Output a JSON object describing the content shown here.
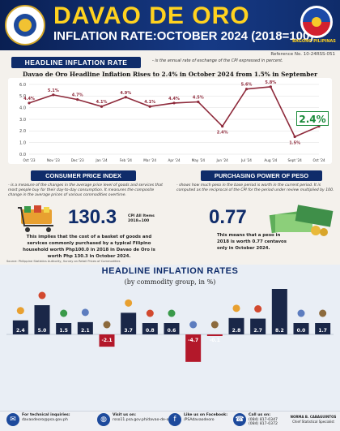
{
  "header": {
    "title": "DAVAO DE ORO",
    "subtitle": "INFLATION RATE:OCTOBER 2024 (2018=100)",
    "logo_text": "BAGONG PILIPINAS",
    "reference": "Reference No. 10-24RSS-051"
  },
  "headline": {
    "tag": "HEADLINE INFLATION RATE",
    "definition": "- is the annual rate of exchange of the CPI expressed in percent.",
    "chart_title": "Davao de Oro Headline Inflation Rises to 2.4% in October 2024 from 1.5% in September",
    "latest_label": "2.4%"
  },
  "cpi": {
    "tag": "CONSUMER PRICE INDEX",
    "definition": "- is a measure of the changes in the average price level of goods and services that most people buy for their day-to-day consumption. It measures the composite change in the average prices of various commodities overtime.",
    "value": "130.3",
    "label1": "CPI All Items",
    "label2": "2018=100",
    "implies": "This implies that the cost of a basket of goods and services commonly purchased by a typical Filipino household worth Php100.0 in 2018 in Davao de Oro is worth Php 130.3 in October 2024."
  },
  "ppp": {
    "tag": "PURCHASING POWER OF PESO",
    "definition": "- shows how much peso in the base period is worth in the current period. It is computed as the reciprocal of the CPI for the period under review multiplied by 100.",
    "value": "0.77",
    "means": "This means that a peso in 2018 is worth 0.77 centavos only in October 2024."
  },
  "source": "Source: Philippine Statistics Authority, Survey on Retail Prices of Commodities",
  "commodity": {
    "title": "HEADLINE INFLATION RATES",
    "subtitle": "(by commodity group, in %)"
  },
  "footer": {
    "tech_label": "For technical inquiries:",
    "tech_email": "davaodeoro@psa.gov.ph",
    "visit_label": "Visit us on:",
    "visit_url": "rsso11.psa.gov.ph/davao-de-oro",
    "fb_label": "Like us on Facebook:",
    "fb_page": "/PSAdavaodeoro",
    "call_label": "Call us on:",
    "call_1": "(084) 817-0347",
    "call_2": "(084) 817-0372",
    "officer_name": "NORMA B. CABAGUINTOS",
    "officer_title": "Chief Statistical Specialist"
  },
  "chart_data": [
    {
      "type": "line",
      "title": "Davao de Oro Headline Inflation Rises to 2.4% in October 2024 from 1.5% in September",
      "categories": [
        "Oct '23",
        "Nov '23",
        "Dec '23",
        "Jan '24",
        "Feb '24",
        "Mar '24",
        "Apr '24",
        "May '24",
        "Jun '24",
        "Jul '24",
        "Aug '24",
        "Sept '24",
        "Oct '24"
      ],
      "values": [
        4.4,
        5.1,
        4.7,
        4.1,
        4.9,
        4.1,
        4.4,
        4.5,
        2.4,
        5.6,
        5.8,
        1.5,
        2.4
      ],
      "labels": [
        "4.4%",
        "5.1%",
        "4.7%",
        "4.1%",
        "4.9%",
        "4.1%",
        "4.4%",
        "4.5%",
        "2.4%",
        "5.6%",
        "5.8%",
        "1.5%",
        "2.4%"
      ],
      "yticks": [
        "0.0",
        "1.0",
        "2.0",
        "3.0",
        "4.0",
        "5.0",
        "6.0"
      ],
      "ylim": [
        0,
        6
      ],
      "grid": true,
      "color": "#8e2a3b"
    },
    {
      "type": "bar",
      "title": "HEADLINE INFLATION RATES",
      "subtitle": "(by commodity group, in %)",
      "values": [
        2.4,
        5.0,
        1.5,
        2.1,
        -2.1,
        3.7,
        0.8,
        0.6,
        -4.7,
        -0.1,
        2.8,
        2.7,
        8.2,
        0.0,
        1.7
      ],
      "labels": [
        "2.4",
        "5.0",
        "1.5",
        "2.1",
        "-2.1",
        "3.7",
        "0.8",
        "0.6",
        "-4.7",
        "-0.1",
        "2.8",
        "2.7",
        "8.2",
        "0.0",
        "1.7"
      ],
      "colors": [
        "#1a2748",
        "#1a2748",
        "#1a2748",
        "#1a2748",
        "#b3182a",
        "#1a2748",
        "#1a2748",
        "#1a2748",
        "#b3182a",
        "#b3182a",
        "#1a2748",
        "#1a2748",
        "#1a2748",
        "#1a2748",
        "#1a2748"
      ],
      "icons": [
        "all-items-icon",
        "food-icon",
        "alcohol-tobacco-icon",
        "clothing-icon",
        "housing-icon",
        "furnishing-icon",
        "health-icon",
        "transport-icon",
        "information-icon",
        "recreation-icon",
        "education-icon",
        "restaurant-icon",
        "insurance-icon",
        "personal-care-icon",
        "misc-icon"
      ]
    }
  ]
}
